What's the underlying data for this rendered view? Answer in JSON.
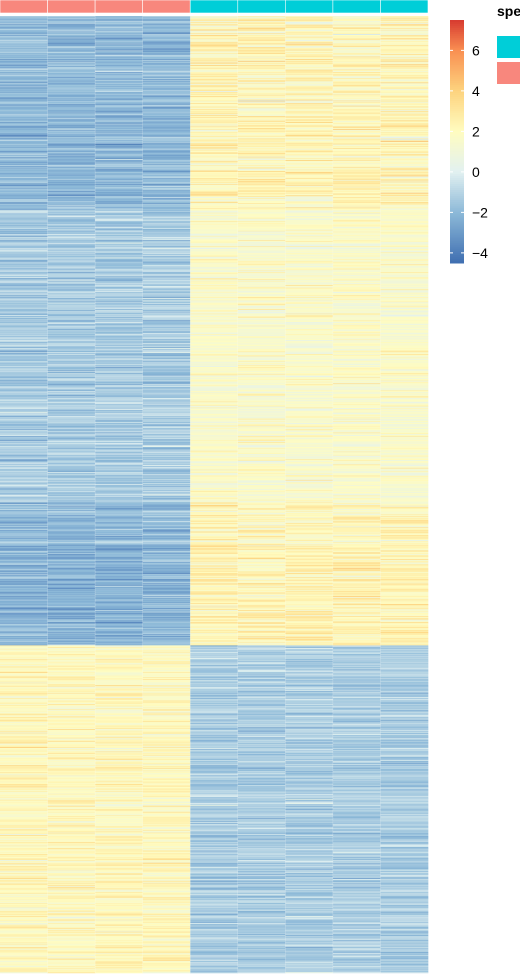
{
  "chart_data": {
    "type": "heatmap",
    "title": "",
    "xlabel": "",
    "ylabel": "",
    "columns": [
      {
        "species_group": "salmon"
      },
      {
        "species_group": "salmon"
      },
      {
        "species_group": "salmon"
      },
      {
        "species_group": "salmon"
      },
      {
        "species_group": "cyan"
      },
      {
        "species_group": "cyan"
      },
      {
        "species_group": "cyan"
      },
      {
        "species_group": "cyan"
      },
      {
        "species_group": "cyan"
      }
    ],
    "annotation": {
      "title": "spe",
      "groups": [
        {
          "key": "cyan",
          "color": "#00CED8"
        },
        {
          "key": "salmon",
          "color": "#F8877D"
        }
      ]
    },
    "value_range": [
      -4.5,
      7.5
    ],
    "colorbar": {
      "ticks": [
        6,
        4,
        2,
        0,
        -2,
        -4
      ],
      "tick_labels": [
        "6",
        "4",
        "2",
        "0",
        "−2",
        "−4"
      ],
      "colors": [
        "#3F6FB1",
        "#8DB9D8",
        "#E2F1F1",
        "#FFFCC0",
        "#FDD37E",
        "#F98F52",
        "#D73A30"
      ],
      "stops": [
        -4.5,
        -2,
        0,
        2,
        4,
        6,
        7.5
      ]
    },
    "row_clusters": [
      {
        "rows": 225,
        "salmon_mean": -2.0,
        "cyan_mean": 2.2,
        "cyan_sd": 1.3
      },
      {
        "rows": 340,
        "salmon_mean": -1.3,
        "cyan_mean": 1.6,
        "cyan_sd": 0.9
      },
      {
        "rows": 165,
        "salmon_mean": -2.1,
        "cyan_mean": 2.3,
        "cyan_sd": 1.2
      },
      {
        "rows": 380,
        "salmon_mean": 2.1,
        "cyan_mean": -1.3,
        "cyan_sd": 0.8
      }
    ],
    "colors": {
      "cyan_group": "#00CED8",
      "salmon_group": "#F8877D"
    }
  }
}
